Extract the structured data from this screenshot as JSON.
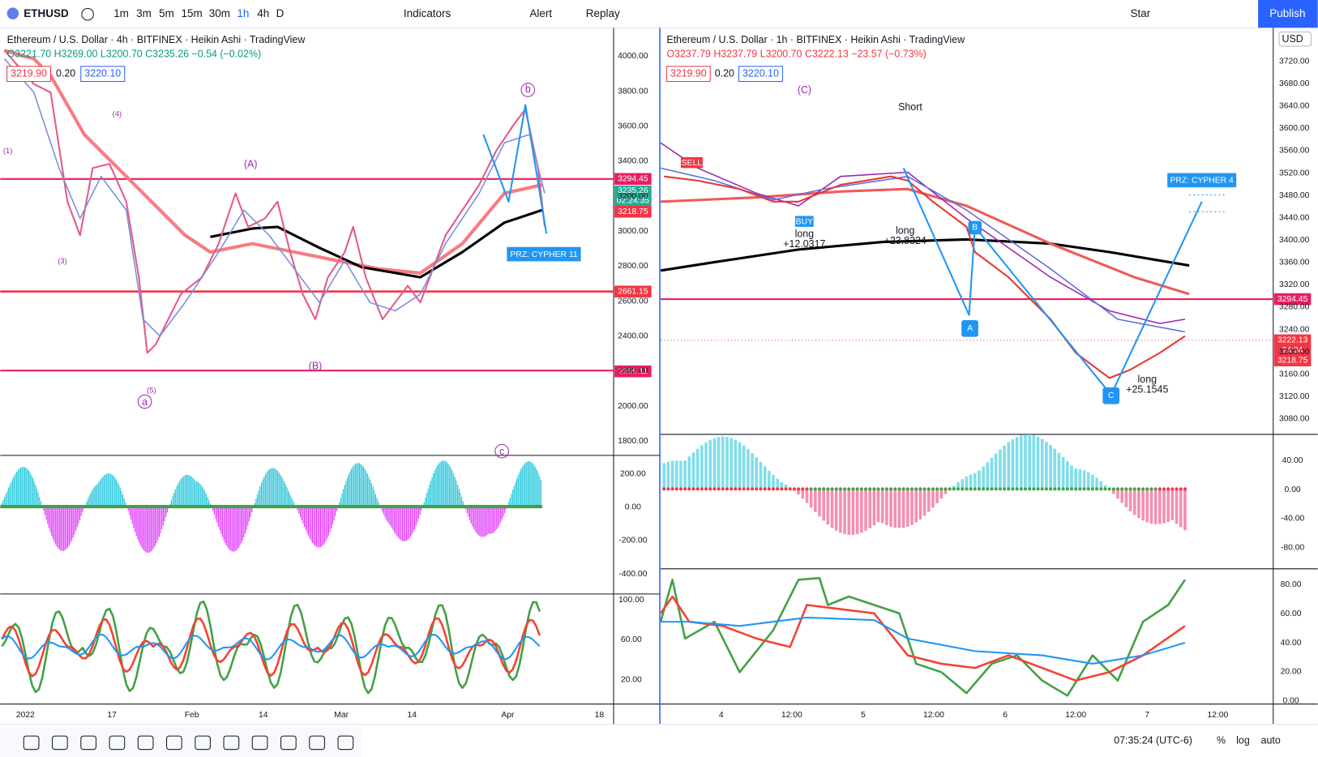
{
  "toolbar": {
    "symbol": "ETHUSD",
    "intervals": [
      "1m",
      "3m",
      "5m",
      "15m",
      "30m",
      "1h",
      "4h",
      "D"
    ],
    "indicators": "Indicators",
    "alert": "Alert",
    "replay": "Replay",
    "layout": "Star",
    "publish": "Publish"
  },
  "left_chart": {
    "title": "Ethereum / U.S. Dollar · 4h · BITFINEX · Heikin Ashi · TradingView",
    "ohlc": "O3221.70 H3269.00 L3200.70 C3235.26 −0.54 (−0.02%)",
    "bid": "3219.90",
    "spread": "0.20",
    "ask": "3220.10",
    "price_axis": [
      "4000.00",
      "3800.00",
      "3600.00",
      "3400.00",
      "3200.00",
      "3000.00",
      "2800.00",
      "2600.00",
      "2400.00",
      "2200.00",
      "2000.00",
      "1800.00"
    ],
    "osc1_axis": [
      "200.00",
      "0.00",
      "-200.00",
      "-400.00"
    ],
    "osc2_axis": [
      "100.00",
      "60.00",
      "20.00"
    ],
    "time_axis": [
      "2022",
      "17",
      "Feb",
      "14",
      "Mar",
      "14",
      "Apr",
      "18"
    ],
    "price_tags": {
      "level_high": "3294.45",
      "last": "3235.26",
      "countdown": "02:24:35",
      "prev": "3218.75",
      "level_mid": "2661.15",
      "level_low": "2206.11"
    },
    "annotations": {
      "przl": "PRZ: CYPHER 11",
      "wave_a": "a",
      "wave_b": "b",
      "wave_c": "c",
      "wave_A": "(A)",
      "wave_B": "(B)",
      "w1": "(1)",
      "w3": "(3)",
      "w4": "(4)",
      "w5": "(5)"
    }
  },
  "right_chart": {
    "title": "Ethereum / U.S. Dollar · 1h · BITFINEX · Heikin Ashi · TradingView",
    "ohlc": "O3237.79 H3237.79 L3200.70 C3222.13 −23.57 (−0.73%)",
    "bid": "3219.90",
    "spread": "0.20",
    "ask": "3220.10",
    "currency": "USD",
    "price_axis": [
      "3720.00",
      "3680.00",
      "3640.00",
      "3600.00",
      "3560.00",
      "3520.00",
      "3480.00",
      "3440.00",
      "3400.00",
      "3360.00",
      "3320.00",
      "3280.00",
      "3240.00",
      "3200.00",
      "3160.00",
      "3120.00",
      "3080.00"
    ],
    "osc1_axis": [
      "40.00",
      "0.00",
      "-40.00",
      "-80.00"
    ],
    "osc2_axis": [
      "80.00",
      "60.00",
      "40.00",
      "20.00",
      "0.00"
    ],
    "time_axis": [
      "4",
      "12:00",
      "5",
      "12:00",
      "6",
      "12:00",
      "7",
      "12:00"
    ],
    "price_tags": {
      "level": "3294.45",
      "last": "3222.13",
      "countdown": "24:34",
      "prev": "3218.75"
    },
    "annotations": {
      "prz": "PRZ: CYPHER 4",
      "wave_C": "(C)",
      "point_a": "A",
      "point_b": "B",
      "point_c": "C",
      "short": "Short",
      "long1": "long",
      "long1v": "+12.0317",
      "long2": "long",
      "long2v": "+23.8324",
      "long3": "long",
      "long3v": "+25.1545",
      "buy": "BUY",
      "sell": "SELL"
    }
  },
  "status_bar": {
    "clock": "07:35:24 (UTC-6)",
    "percent": "%",
    "log": "log",
    "auto": "auto"
  }
}
